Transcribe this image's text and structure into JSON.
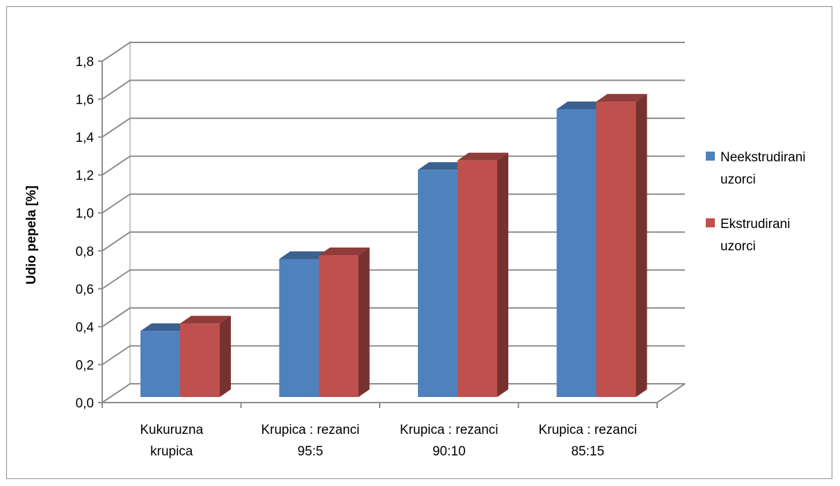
{
  "chart_data": {
    "type": "bar",
    "style": "3d-clustered-column",
    "title": "",
    "xlabel": "",
    "ylabel": "Udio pepela [%]",
    "ylim": [
      0,
      1.8
    ],
    "yticks": [
      "0,0",
      "0,2",
      "0,4",
      "0,6",
      "0,8",
      "1,0",
      "1,2",
      "1,4",
      "1,6",
      "1,8"
    ],
    "grid": true,
    "legend_position": "right",
    "categories": [
      [
        "Kukuruzna",
        "krupica"
      ],
      [
        "Krupica : rezanci",
        "95:5"
      ],
      [
        "Krupica : rezanci",
        "90:10"
      ],
      [
        "Krupica : rezanci",
        "85:15"
      ]
    ],
    "series": [
      {
        "name": "Neekstrudirani uzorci",
        "legend_lines": [
          "Neekstrudirani",
          "uzorci"
        ],
        "color": "#4F81BD",
        "values": [
          0.41,
          0.79,
          1.26,
          1.58
        ]
      },
      {
        "name": "Ekstrudirani uzorci",
        "legend_lines": [
          "Ekstrudirani",
          "uzorci"
        ],
        "color": "#C0504D",
        "values": [
          0.45,
          0.81,
          1.31,
          1.62
        ]
      }
    ]
  },
  "colors": {
    "grid": "#8c8c8c",
    "frame": "#8c8c8c"
  }
}
